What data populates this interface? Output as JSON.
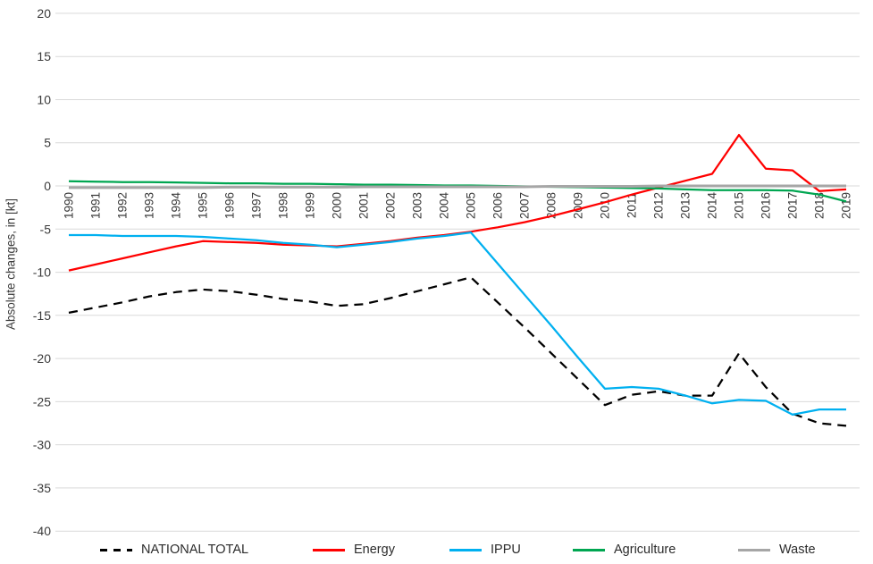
{
  "chart_data": {
    "type": "line",
    "title": "",
    "xlabel": "",
    "ylabel": "Absolute changes, in [kt]",
    "ylim": [
      -40,
      20
    ],
    "y_ticks": [
      20,
      15,
      10,
      5,
      0,
      -5,
      -10,
      -15,
      -20,
      -25,
      -30,
      -35,
      -40
    ],
    "grid": "horizontal",
    "legend_position": "bottom",
    "x": [
      "1990",
      "1991",
      "1992",
      "1993",
      "1994",
      "1995",
      "1996",
      "1997",
      "1998",
      "1999",
      "2000",
      "2001",
      "2002",
      "2003",
      "2004",
      "2005",
      "2006",
      "2007",
      "2008",
      "2009",
      "2010",
      "2011",
      "2012",
      "2013",
      "2014",
      "2015",
      "2016",
      "2017",
      "2018",
      "2019"
    ],
    "series": [
      {
        "name": "NATIONAL TOTAL",
        "color": "#000000",
        "style": "dashed",
        "values": [
          -14.7,
          -14.1,
          -13.5,
          -12.8,
          -12.3,
          -12.0,
          -12.2,
          -12.6,
          -13.1,
          -13.4,
          -13.9,
          -13.7,
          -13.0,
          -12.2,
          -11.4,
          -10.6,
          -13.5,
          -16.4,
          -19.4,
          -22.4,
          -25.4,
          -24.2,
          -23.8,
          -24.3,
          -24.3,
          -19.4,
          -23.3,
          -26.4,
          -27.5,
          -27.8
        ]
      },
      {
        "name": "Energy",
        "color": "#FF0000",
        "style": "solid",
        "values": [
          -9.8,
          -9.1,
          -8.4,
          -7.7,
          -7.0,
          -6.4,
          -6.5,
          -6.6,
          -6.8,
          -6.9,
          -7.0,
          -6.7,
          -6.4,
          -6.0,
          -5.7,
          -5.3,
          -4.8,
          -4.2,
          -3.5,
          -2.7,
          -1.9,
          -1.0,
          -0.2,
          0.6,
          1.4,
          5.9,
          2.0,
          1.8,
          -0.6,
          -0.4
        ]
      },
      {
        "name": "IPPU",
        "color": "#00B0F0",
        "style": "solid",
        "values": [
          -5.7,
          -5.7,
          -5.8,
          -5.8,
          -5.8,
          -5.9,
          -6.1,
          -6.3,
          -6.6,
          -6.8,
          -7.1,
          -6.8,
          -6.5,
          -6.1,
          -5.8,
          -5.4,
          -9.0,
          -12.6,
          -16.2,
          -19.9,
          -23.5,
          -23.3,
          -23.5,
          -24.3,
          -25.2,
          -24.8,
          -24.9,
          -26.5,
          -25.9,
          -25.9
        ]
      },
      {
        "name": "Agriculture",
        "color": "#00A651",
        "style": "solid",
        "values": [
          0.55,
          0.5,
          0.45,
          0.45,
          0.4,
          0.35,
          0.3,
          0.3,
          0.25,
          0.25,
          0.2,
          0.15,
          0.15,
          0.1,
          0.05,
          0.05,
          0.0,
          -0.05,
          -0.1,
          -0.15,
          -0.2,
          -0.25,
          -0.3,
          -0.4,
          -0.5,
          -0.5,
          -0.5,
          -0.55,
          -1.0,
          -1.8
        ]
      },
      {
        "name": "Waste",
        "color": "#A6A6A6",
        "style": "solid",
        "values": [
          -0.2,
          -0.2,
          -0.2,
          -0.2,
          -0.2,
          -0.2,
          -0.15,
          -0.15,
          -0.15,
          -0.15,
          -0.15,
          -0.1,
          -0.1,
          -0.1,
          -0.1,
          -0.1,
          -0.1,
          -0.1,
          -0.05,
          -0.05,
          -0.05,
          -0.05,
          0.0,
          0.0,
          0.0,
          0.0,
          0.0,
          0.0,
          0.0,
          0.0
        ]
      }
    ]
  },
  "colors": {
    "gridline": "#D9D9D9",
    "axis_text": "#3A3A3A",
    "background": "#FFFFFF"
  }
}
